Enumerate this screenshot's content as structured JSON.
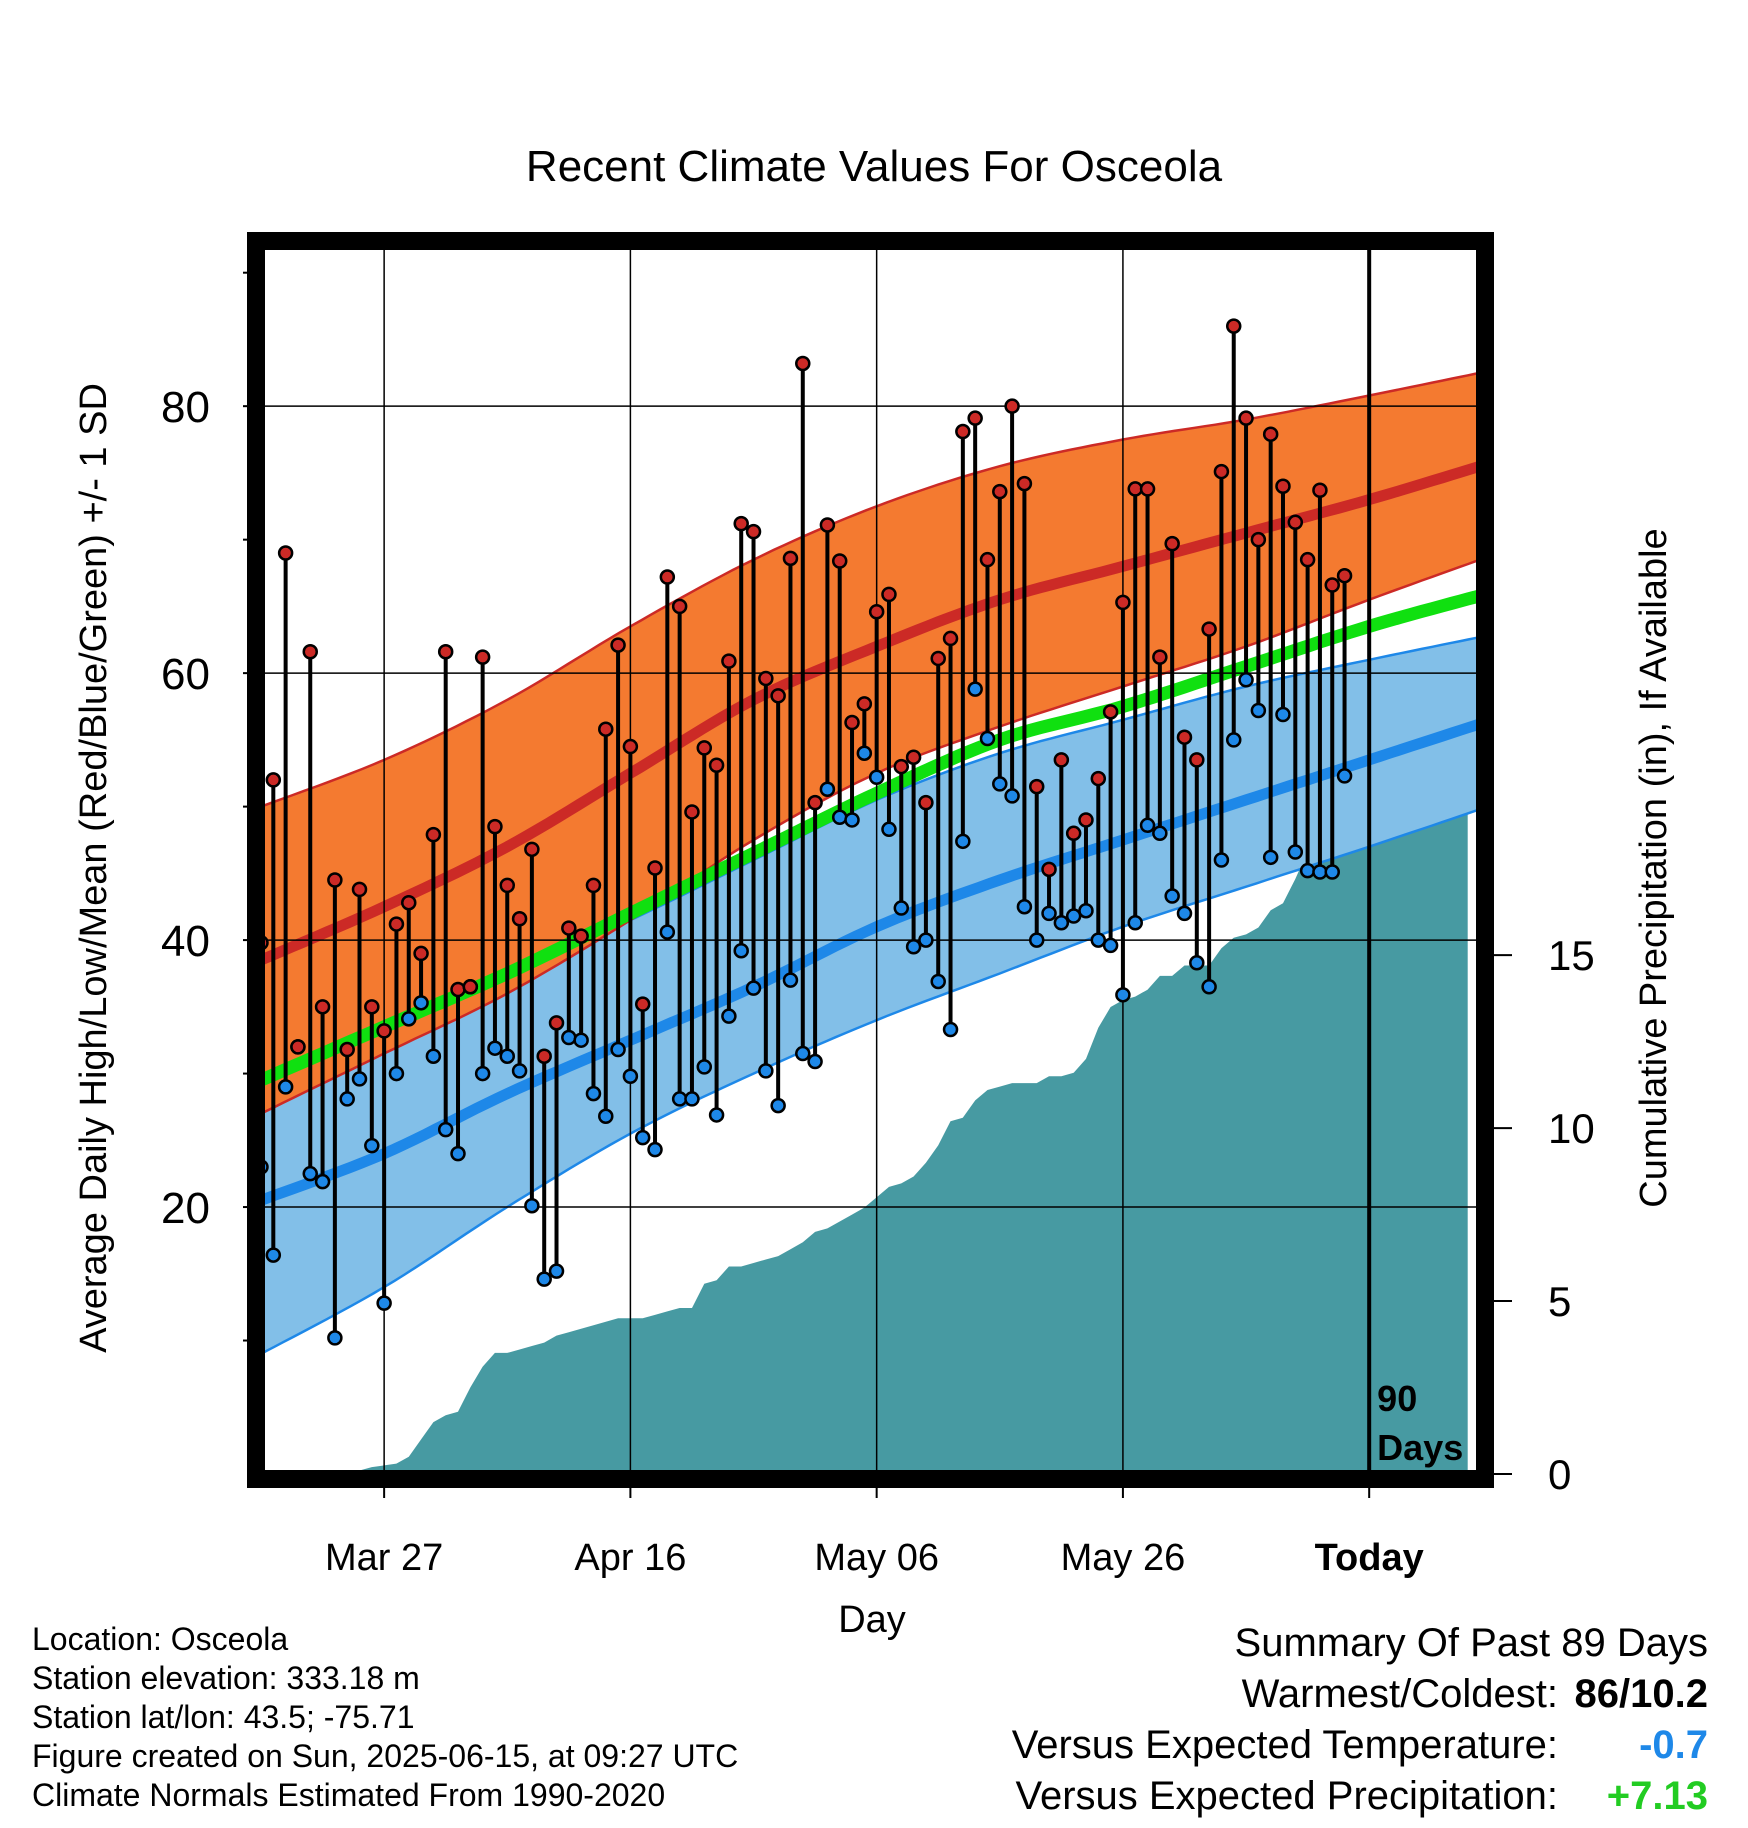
{
  "chart_data": {
    "type": "line",
    "title": "Recent Climate Values For Osceola",
    "xlabel": "Day",
    "ylabel": "Average Daily High/Low/Mean (Red/Blue/Green) +/- 1 SD",
    "y2label": "Cumulative Precipitation (in), If Available",
    "x_start": "2025-03-17",
    "x_end": "2025-06-24",
    "x_ticks": [
      {
        "date": "2025-03-27",
        "label": "Mar 27"
      },
      {
        "date": "2025-04-16",
        "label": "Apr 16"
      },
      {
        "date": "2025-05-06",
        "label": "May 06"
      },
      {
        "date": "2025-05-26",
        "label": "May 26"
      },
      {
        "date": "2025-06-15",
        "label": "Today"
      }
    ],
    "ylim": [
      0,
      92
    ],
    "y_ticks": [
      20,
      40,
      60,
      80
    ],
    "y2lim": [
      0,
      35.5
    ],
    "y2_ticks": [
      0,
      5,
      10,
      15
    ],
    "today_marker": {
      "date": "2025-06-15",
      "label_line1": "90",
      "label_line2": "Days"
    },
    "normals": {
      "dates": [
        "2025-03-17",
        "2025-03-27",
        "2025-04-06",
        "2025-04-16",
        "2025-04-26",
        "2025-05-06",
        "2025-05-16",
        "2025-05-26",
        "2025-06-05",
        "2025-06-15",
        "2025-06-24"
      ],
      "high_mean": [
        38.5,
        42.5,
        47.0,
        52.5,
        58.0,
        62.0,
        65.5,
        68.0,
        70.5,
        73.0,
        75.5
      ],
      "high_upper": [
        50.0,
        53.5,
        58.0,
        63.5,
        68.5,
        72.5,
        75.5,
        77.5,
        79.0,
        80.8,
        82.5
      ],
      "high_lower": [
        27.0,
        31.5,
        36.0,
        41.5,
        47.5,
        52.5,
        56.0,
        59.0,
        62.0,
        65.5,
        68.5
      ],
      "low_mean": [
        20.5,
        24.0,
        28.5,
        32.5,
        36.5,
        41.0,
        44.5,
        47.5,
        50.5,
        53.5,
        56.2
      ],
      "low_upper": [
        28.5,
        33.0,
        37.5,
        41.5,
        46.0,
        50.5,
        54.0,
        56.5,
        59.0,
        61.0,
        62.7
      ],
      "low_lower": [
        9.0,
        14.0,
        20.0,
        25.5,
        30.0,
        34.0,
        37.5,
        41.0,
        44.0,
        47.0,
        49.8
      ],
      "avg_mean": [
        29.5,
        33.5,
        37.5,
        42.0,
        46.5,
        51.0,
        55.0,
        57.5,
        60.5,
        63.5,
        65.8
      ]
    },
    "series": [
      {
        "name": "High",
        "start": "2025-03-17",
        "values": [
          39.8,
          52,
          69,
          32,
          61.6,
          35,
          44.5,
          31.8,
          43.8,
          35,
          33.2,
          41.2,
          42.8,
          39,
          47.9,
          61.6,
          36.3,
          36.5,
          61.2,
          48.5,
          44.1,
          41.6,
          46.8,
          31.3,
          33.8,
          40.9,
          40.3,
          44.1,
          55.8,
          62.1,
          54.5,
          35.2,
          45.4,
          67.2,
          65,
          49.6,
          54.4,
          53.1,
          60.9,
          71.2,
          70.6,
          59.6,
          58.3,
          68.6,
          83.2,
          50.3,
          71.1,
          68.4,
          56.3,
          57.7,
          64.6,
          65.9,
          53,
          53.7,
          50.3,
          61.1,
          62.6,
          78.1,
          79.1,
          68.5,
          73.6,
          80,
          74.2,
          51.5,
          45.3,
          53.5,
          48,
          49,
          52.1,
          57.1,
          65.3,
          73.8,
          73.8,
          61.2,
          69.7,
          55.2,
          53.5,
          63.3,
          75.1,
          86,
          79.1,
          70,
          77.9,
          74,
          71.3,
          68.5,
          73.7,
          66.6,
          67.3,
          69.5
        ]
      },
      {
        "name": "Low",
        "start": "2025-03-17",
        "values": [
          23,
          16.4,
          29,
          32,
          22.5,
          21.9,
          10.2,
          28.1,
          29.6,
          24.6,
          12.8,
          30,
          34.1,
          35.3,
          31.3,
          25.8,
          24,
          36.5,
          30,
          31.9,
          31.3,
          30.2,
          20.1,
          14.6,
          15.2,
          32.7,
          32.5,
          28.5,
          26.8,
          31.8,
          29.8,
          25.2,
          24.3,
          40.6,
          28.1,
          28.1,
          30.5,
          26.9,
          34.3,
          39.2,
          36.4,
          30.2,
          27.6,
          37,
          31.5,
          30.9,
          51.3,
          49.2,
          49,
          54,
          52.2,
          48.3,
          42.4,
          39.5,
          40,
          36.9,
          33.3,
          47.4,
          58.8,
          55.1,
          51.7,
          50.8,
          42.5,
          40,
          42,
          41.3,
          41.8,
          42.2,
          40,
          39.6,
          35.9,
          41.3,
          48.6,
          48,
          43.3,
          42,
          38.3,
          36.5,
          46,
          55,
          59.5,
          57.2,
          46.2,
          56.9,
          46.6,
          45.2,
          45.1,
          45.1,
          52.3
        ]
      }
    ],
    "precip": {
      "start": "2025-03-17",
      "cumulative": [
        0,
        0,
        0,
        0,
        0,
        0,
        0,
        0.05,
        0.1,
        0.2,
        0.25,
        0.3,
        0.5,
        1.0,
        1.5,
        1.7,
        1.8,
        2.5,
        3.1,
        3.5,
        3.5,
        3.6,
        3.7,
        3.8,
        4.0,
        4.1,
        4.2,
        4.3,
        4.4,
        4.5,
        4.5,
        4.5,
        4.6,
        4.7,
        4.8,
        4.8,
        5.5,
        5.6,
        6.0,
        6.0,
        6.1,
        6.2,
        6.3,
        6.5,
        6.7,
        7.0,
        7.1,
        7.3,
        7.5,
        7.7,
        8.0,
        8.3,
        8.4,
        8.6,
        9.0,
        9.5,
        10.2,
        10.3,
        10.8,
        11.1,
        11.2,
        11.3,
        11.3,
        11.3,
        11.5,
        11.5,
        11.6,
        12.0,
        12.9,
        13.5,
        13.7,
        13.8,
        14.0,
        14.4,
        14.4,
        14.7,
        14.7,
        14.7,
        15.2,
        15.5,
        15.6,
        15.8,
        16.3,
        16.5,
        17.2,
        18.0,
        18.4,
        18.6,
        18.8,
        19.8,
        20.1,
        20.6,
        21.0,
        21.0,
        21.1,
        21.2,
        21.3,
        21.3,
        21.3
      ]
    }
  },
  "info": {
    "location": "Location: Osceola",
    "elevation": "Station elevation: 333.18 m",
    "latlon": "Station lat/lon: 43.5; -75.71",
    "created": "Figure created on Sun, 2025-06-15, at 09:27 UTC",
    "normals": "Climate Normals Estimated From 1990-2020"
  },
  "summary": {
    "title": "Summary Of Past 89 Days",
    "warmest_label": "Warmest/Coldest:",
    "warmest_hot": "86",
    "warmest_sep": "/",
    "warmest_cold": "10.2",
    "temp_label": "Versus Expected Temperature:",
    "temp_value": "-0.7",
    "precip_label": "Versus Expected Precipitation:",
    "precip_value": "+7.13"
  },
  "colors": {
    "high_band": "#f47a30",
    "high_line": "#cc2a26",
    "low_band": "#82bfe8",
    "low_line": "#1e88e8",
    "avg_line": "#10e010",
    "precip": "#479aa2",
    "temp_anomaly": "#1e88e8",
    "precip_anomaly": "#22cc22"
  }
}
